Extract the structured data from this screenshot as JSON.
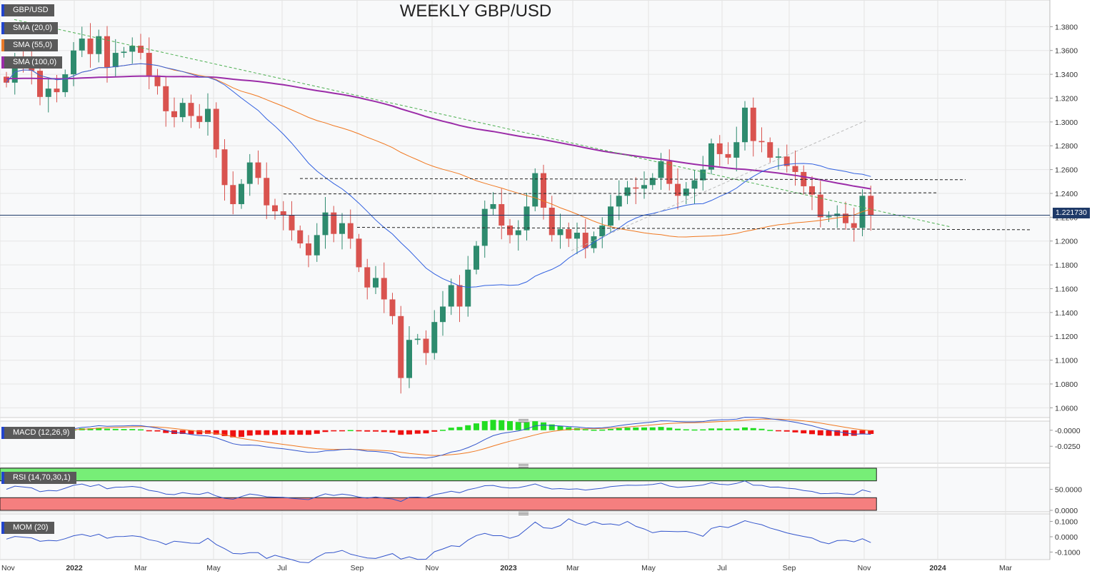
{
  "title": "WEEKLY GBP/USD",
  "legends": {
    "main": [
      "GBP/USD",
      "SMA (20,0)",
      "SMA (55,0)",
      "SMA (100,0)"
    ],
    "macd": "MACD (12,26,9)",
    "rsi": "RSI (14,70,30,1)",
    "mom": "MOM (20)"
  },
  "current_price": "1.221730",
  "colors": {
    "up": "#2e8b6e",
    "down": "#d9534f",
    "sma20": "#3060e0",
    "sma55": "#f07820",
    "sma100": "#9b2ca8",
    "macd_line": "#3355cc",
    "signal_line": "#f07820",
    "hist_pos": "#22dd22",
    "hist_neg": "#ee1111",
    "rsi_line": "#3355cc",
    "rsi_over": "#77ee77",
    "rsi_under": "#f57f7f"
  },
  "chart_data": [
    {
      "type": "candlestick",
      "title": "WEEKLY GBP/USD",
      "x_tick_labels": [
        "Nov",
        "2022",
        "Mar",
        "May",
        "Jul",
        "Sep",
        "Nov",
        "2023",
        "Mar",
        "May",
        "Jul",
        "Sep",
        "Nov",
        "2024",
        "Mar"
      ],
      "y_tick_labels": [
        "1.3800",
        "1.3600",
        "1.3400",
        "1.3200",
        "1.3000",
        "1.2800",
        "1.2600",
        "1.2400",
        "1.2200",
        "1.2000",
        "1.1800",
        "1.1600",
        "1.1400",
        "1.1200",
        "1.1000",
        "1.0800",
        "1.0600"
      ],
      "ylim": [
        1.053,
        1.394
      ],
      "series": [
        {
          "name": "GBP/USD",
          "close": [
            1.333,
            1.351,
            1.347,
            1.343,
            1.321,
            1.328,
            1.325,
            1.34,
            1.36,
            1.37,
            1.357,
            1.372,
            1.346,
            1.358,
            1.359,
            1.364,
            1.358,
            1.339,
            1.33,
            1.309,
            1.304,
            1.316,
            1.305,
            1.3,
            1.311,
            1.277,
            1.247,
            1.231,
            1.248,
            1.266,
            1.253,
            1.23,
            1.225,
            1.222,
            1.209,
            1.198,
            1.188,
            1.205,
            1.224,
            1.206,
            1.215,
            1.202,
            1.178,
            1.161,
            1.169,
            1.151,
            1.137,
            1.085,
            1.117,
            1.118,
            1.106,
            1.132,
            1.145,
            1.163,
            1.145,
            1.176,
            1.196,
            1.227,
            1.231,
            1.213,
            1.205,
            1.209,
            1.229,
            1.257,
            1.228,
            1.205,
            1.21,
            1.202,
            1.207,
            1.194,
            1.204,
            1.213,
            1.229,
            1.238,
            1.245,
            1.244,
            1.247,
            1.253,
            1.267,
            1.248,
            1.238,
            1.244,
            1.251,
            1.26,
            1.282,
            1.273,
            1.27,
            1.283,
            1.312,
            1.284,
            1.283,
            1.27,
            1.271,
            1.263,
            1.258,
            1.246,
            1.239,
            1.22,
            1.221,
            1.223,
            1.215,
            1.211,
            1.238,
            1.2217
          ]
        },
        {
          "name": "SMA (20,0)"
        },
        {
          "name": "SMA (55,0)"
        },
        {
          "name": "SMA (100,0)"
        }
      ],
      "annotations": [
        "1.221730"
      ]
    },
    {
      "type": "line",
      "title": "MACD (12,26,9)",
      "y_tick_labels": [
        "-0.0000",
        "-0.0250"
      ],
      "ylim": [
        -0.047,
        0.012
      ]
    },
    {
      "type": "line",
      "title": "RSI (14,70,30,1)",
      "y_tick_labels": [
        "50.0000",
        "0.0000"
      ],
      "ylim": [
        0,
        100
      ]
    },
    {
      "type": "line",
      "title": "MOM (20)",
      "y_tick_labels": [
        "0.1000",
        "0.0000",
        "-0.1000"
      ],
      "ylim": [
        -0.14,
        0.14
      ]
    }
  ]
}
